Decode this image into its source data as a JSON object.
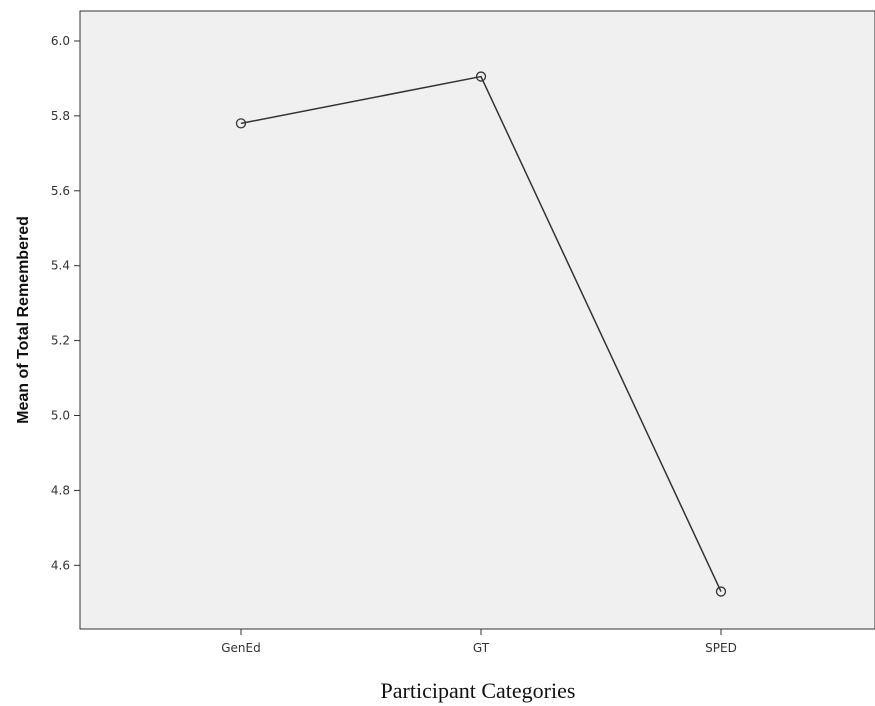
{
  "chart_data": {
    "type": "line",
    "title": "",
    "xlabel": "Participant Categories",
    "ylabel": "Mean of Total Remembered",
    "categories": [
      "GenEd",
      "GT",
      "SPED"
    ],
    "series": [
      {
        "values": [
          5.78,
          5.905,
          4.53
        ]
      }
    ],
    "ylim": [
      4.43,
      6.08
    ],
    "yticks": [
      "4.6",
      "4.8",
      "5.0",
      "5.2",
      "5.4",
      "5.6",
      "5.8",
      "6.0"
    ],
    "grid": false,
    "legend": "none",
    "colors": {
      "plot_background": "#f0f0f0",
      "line": "#333333",
      "marker": "#333333",
      "frame": "#333333"
    }
  }
}
